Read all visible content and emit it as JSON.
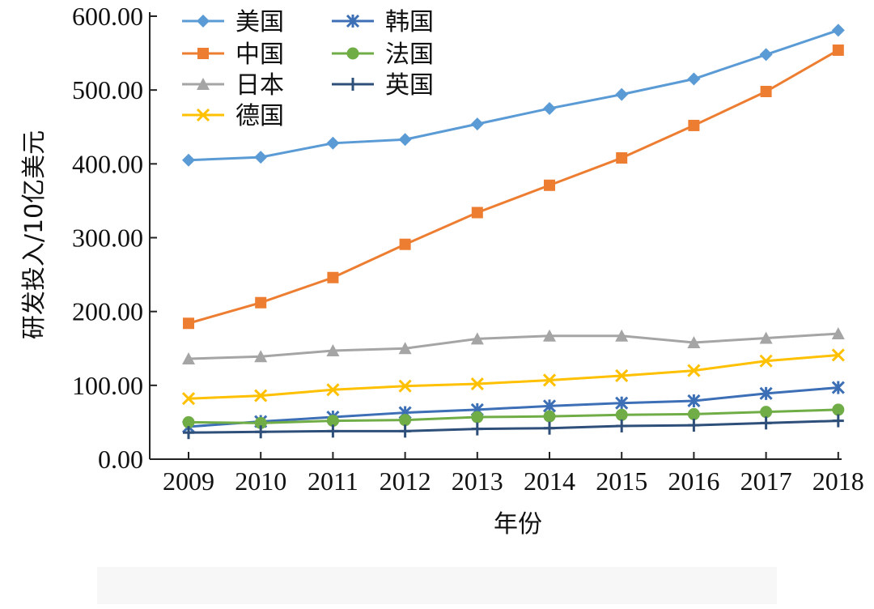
{
  "chart_data": {
    "type": "line",
    "title": "",
    "xlabel": "年份",
    "ylabel": "研发投入/10亿美元",
    "x": [
      "2009",
      "2010",
      "2011",
      "2012",
      "2013",
      "2014",
      "2015",
      "2016",
      "2017",
      "2018"
    ],
    "ylim": [
      0,
      600
    ],
    "yticks": [
      "0.00",
      "100.00",
      "200.00",
      "300.00",
      "400.00",
      "500.00",
      "600.00"
    ],
    "grid": false,
    "legend_position": "top-left",
    "series": [
      {
        "name": "美国",
        "color": "#5B9BD5",
        "marker": "diamond",
        "values": [
          405,
          409,
          428,
          433,
          454,
          475,
          494,
          515,
          548,
          581
        ]
      },
      {
        "name": "中国",
        "color": "#ED7D31",
        "marker": "square",
        "values": [
          184,
          212,
          246,
          291,
          334,
          371,
          408,
          452,
          498,
          554
        ]
      },
      {
        "name": "日本",
        "color": "#A5A5A5",
        "marker": "triangle",
        "values": [
          136,
          139,
          147,
          150,
          163,
          167,
          167,
          158,
          164,
          170
        ]
      },
      {
        "name": "德国",
        "color": "#FFC000",
        "marker": "x",
        "values": [
          82,
          86,
          94,
          99,
          102,
          107,
          113,
          120,
          133,
          141
        ]
      },
      {
        "name": "韩国",
        "color": "#3C6FB5",
        "marker": "star",
        "values": [
          44,
          51,
          57,
          63,
          67,
          72,
          76,
          79,
          89,
          97
        ]
      },
      {
        "name": "法国",
        "color": "#70AD47",
        "marker": "circle",
        "values": [
          50,
          49,
          52,
          53,
          57,
          58,
          60,
          61,
          64,
          67
        ]
      },
      {
        "name": "英国",
        "color": "#2E4F7A",
        "marker": "plus",
        "values": [
          36,
          37,
          38,
          38,
          41,
          42,
          45,
          46,
          49,
          52
        ]
      }
    ]
  }
}
